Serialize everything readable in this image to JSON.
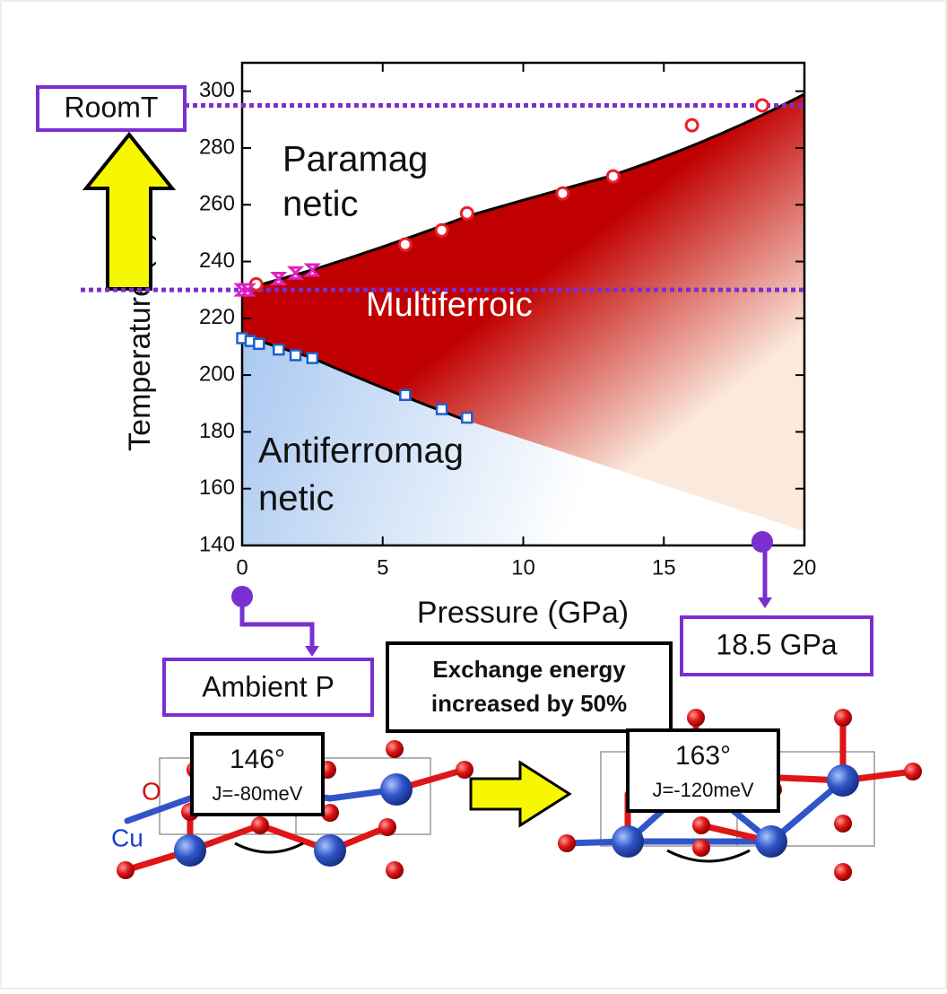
{
  "chart_data": {
    "type": "scatter",
    "xlabel": "Pressure (GPa)",
    "ylabel": "Temperature (K)",
    "xlim": [
      0,
      20
    ],
    "ylim": [
      140,
      310
    ],
    "xticks": [
      0,
      5,
      10,
      15,
      20
    ],
    "yticks": [
      140,
      160,
      180,
      200,
      220,
      240,
      260,
      280,
      300
    ],
    "series": [
      {
        "color": "#e8202a",
        "marker": "circle",
        "x": [
          0.5,
          5.8,
          7.1,
          8,
          11.4,
          13.2,
          16,
          18.5
        ],
        "values": [
          232,
          246,
          251,
          257,
          264,
          270,
          288,
          295
        ]
      },
      {
        "color": "#e020c0",
        "marker": "star",
        "x": [
          0,
          0.2,
          1.3,
          1.9,
          2.5
        ],
        "values": [
          230,
          230,
          234,
          236,
          237
        ]
      },
      {
        "color": "#1a5fd0",
        "marker": "square",
        "x": [
          0,
          0.3,
          0.6,
          1.3,
          1.9,
          2.5,
          5.8,
          7.1,
          8
        ],
        "values": [
          213,
          212,
          211,
          209,
          207,
          206,
          193,
          188,
          185
        ]
      }
    ],
    "reference_lines": [
      {
        "label": "RoomT",
        "value": 295
      },
      {
        "value": 230
      }
    ],
    "region_labels": [
      "Paramag",
      "netic",
      "Multiferroic",
      "Antiferromag",
      "netic"
    ],
    "pressure_markers": [
      {
        "label": "Ambient P",
        "value": 0
      },
      {
        "label": "18.5 GPa",
        "value": 18.5
      }
    ]
  },
  "structures": {
    "caption": [
      "Exchange energy",
      "increased by 50%"
    ],
    "atoms": [
      "O",
      "Cu"
    ],
    "left": {
      "angle": "146°",
      "exchange": "J=-80meV"
    },
    "right": {
      "angle": "163°",
      "exchange": "J=-120meV"
    }
  }
}
